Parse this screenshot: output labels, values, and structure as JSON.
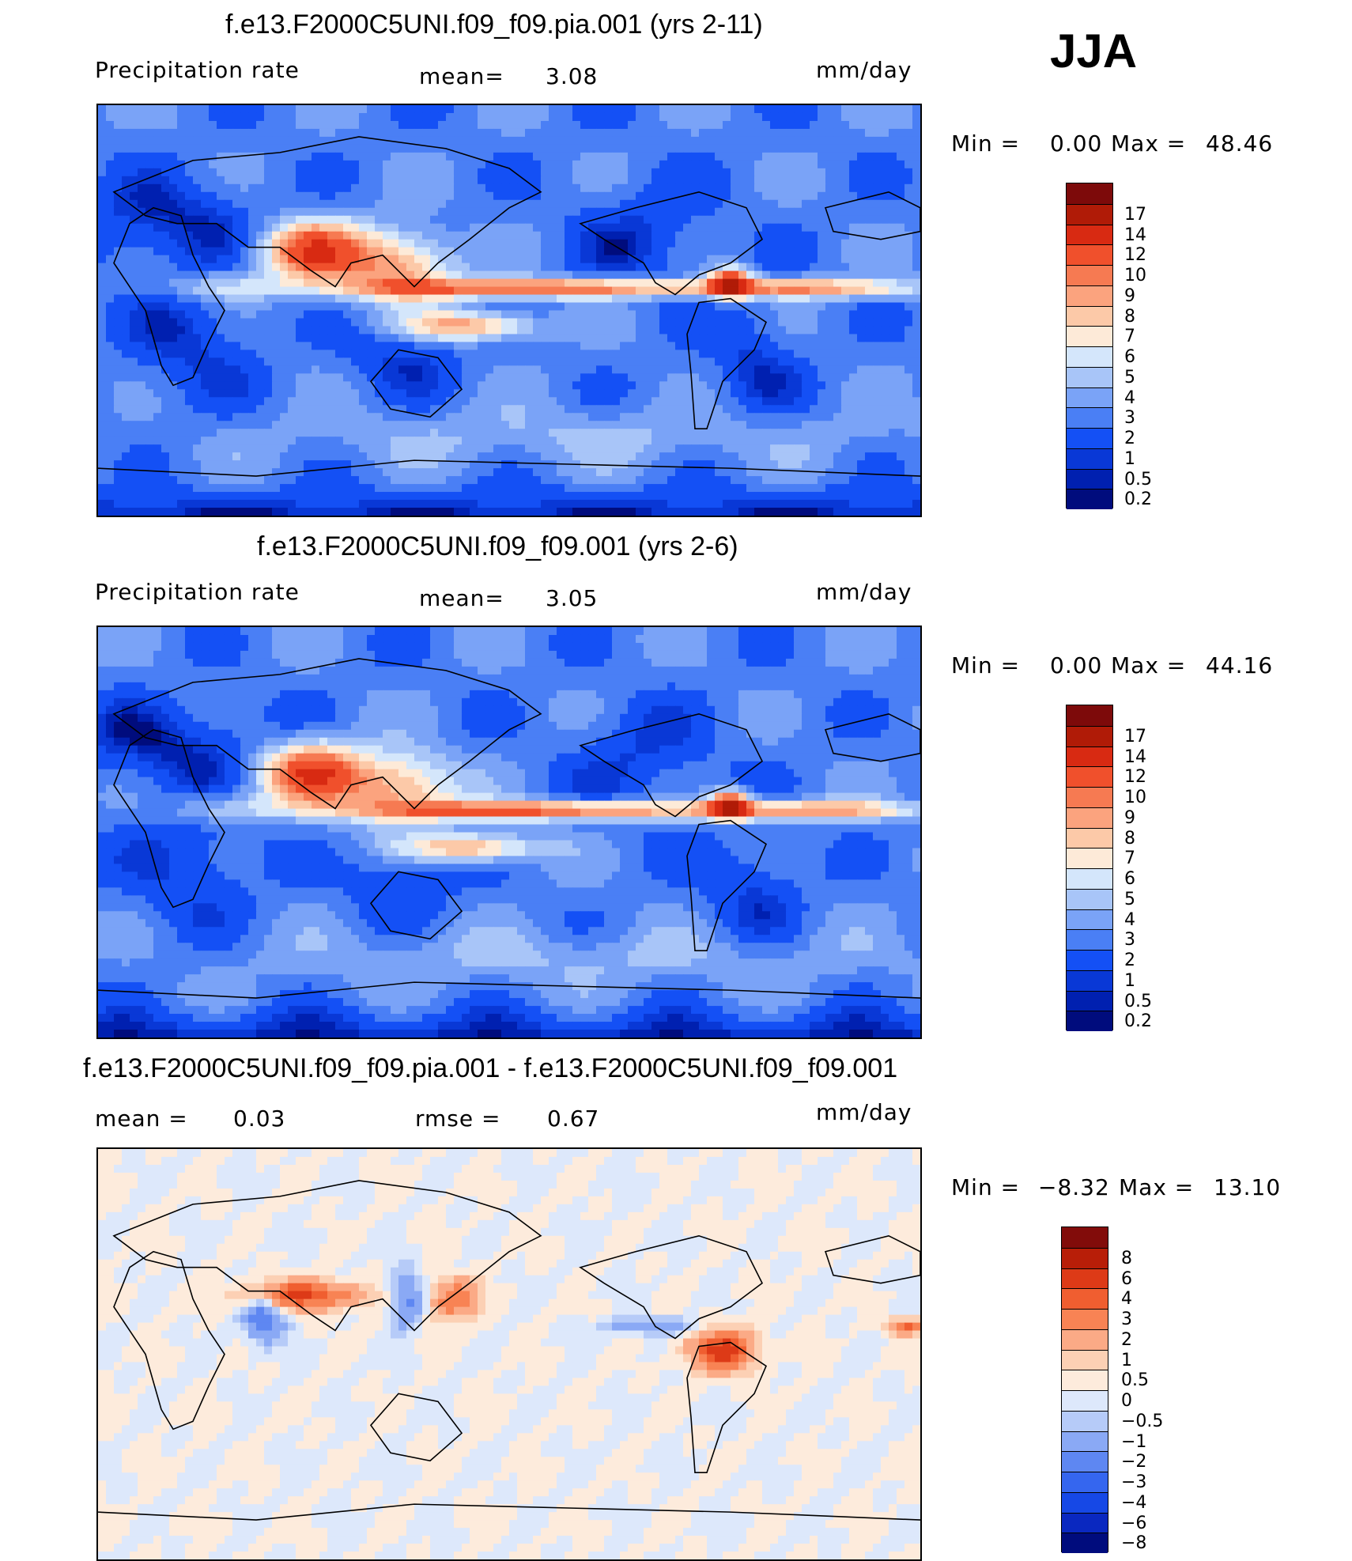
{
  "season": "JJA",
  "chart_data": [
    {
      "type": "heatmap",
      "title": "f.e13.F2000C5UNI.f09_f09.pia.001 (yrs 2-11)",
      "variable": "Precipitation rate",
      "mean_label": "mean=",
      "mean": "3.08",
      "units": "mm/day",
      "min_label": "Min =",
      "min": "0.00",
      "max_label": "Max =",
      "max": "48.46",
      "colorbar": {
        "levels": [
          "0.2",
          "0.5",
          "1",
          "2",
          "3",
          "4",
          "5",
          "6",
          "7",
          "8",
          "9",
          "10",
          "12",
          "14",
          "17"
        ],
        "colors": [
          "#000c7d",
          "#0020b0",
          "#0938d6",
          "#1450f5",
          "#4a7ff5",
          "#7aa3f7",
          "#a8c5f8",
          "#d4e6fb",
          "#fdead8",
          "#fcc9a8",
          "#fba37e",
          "#f67a52",
          "#f0502c",
          "#d82a12",
          "#b01b07",
          "#7d0a0a"
        ]
      }
    },
    {
      "type": "heatmap",
      "title": "f.e13.F2000C5UNI.f09_f09.001 (yrs 2-6)",
      "variable": "Precipitation rate",
      "mean_label": "mean=",
      "mean": "3.05",
      "units": "mm/day",
      "min_label": "Min =",
      "min": "0.00",
      "max_label": "Max =",
      "max": "44.16",
      "colorbar": {
        "levels": [
          "0.2",
          "0.5",
          "1",
          "2",
          "3",
          "4",
          "5",
          "6",
          "7",
          "8",
          "9",
          "10",
          "12",
          "14",
          "17"
        ],
        "colors": [
          "#000c7d",
          "#0020b0",
          "#0938d6",
          "#1450f5",
          "#4a7ff5",
          "#7aa3f7",
          "#a8c5f8",
          "#d4e6fb",
          "#fdead8",
          "#fcc9a8",
          "#fba37e",
          "#f67a52",
          "#f0502c",
          "#d82a12",
          "#b01b07",
          "#7d0a0a"
        ]
      }
    },
    {
      "type": "heatmap",
      "title": "f.e13.F2000C5UNI.f09_f09.pia.001 - f.e13.F2000C5UNI.f09_f09.001",
      "mean_label": "mean =",
      "mean": "0.03",
      "rmse_label": "rmse =",
      "rmse": "0.67",
      "units": "mm/day",
      "min_label": "Min =",
      "min": "−8.32",
      "max_label": "Max =",
      "max": "13.10",
      "colorbar": {
        "levels": [
          "−8",
          "−6",
          "−4",
          "−3",
          "−2",
          "−1",
          "−0.5",
          "0",
          "0.5",
          "1",
          "2",
          "3",
          "4",
          "6",
          "8"
        ],
        "colors": [
          "#000c7d",
          "#0a28c0",
          "#1648e6",
          "#3566ef",
          "#5e87f2",
          "#8aa9f5",
          "#b6cbf8",
          "#dde8fb",
          "#fdebdc",
          "#fcd0b4",
          "#fbaa86",
          "#f88354",
          "#f05e30",
          "#dd3a17",
          "#b81e08",
          "#820c0a"
        ]
      }
    }
  ]
}
